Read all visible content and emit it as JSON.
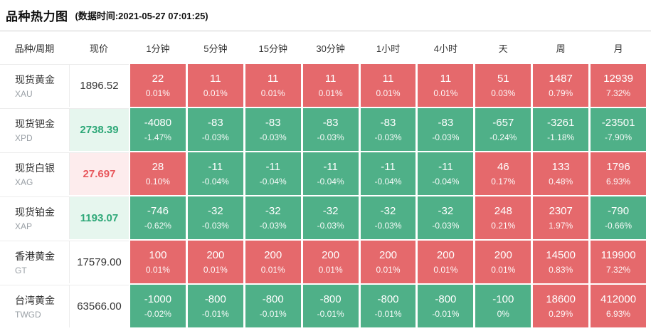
{
  "page": {
    "title": "品种热力图",
    "subtitle": "(数据时间:2021-05-27 07:01:25)"
  },
  "colors": {
    "up": "#E5696C",
    "down": "#4FB088",
    "price_up_bg": "#FDECED",
    "price_up_text": "#E8575C",
    "price_down_bg": "#E6F6EE",
    "price_down_text": "#2EA878"
  },
  "chart_data": {
    "type": "heatmap",
    "columns": [
      "品种/周期",
      "现价",
      "1分钟",
      "5分钟",
      "15分钟",
      "30分钟",
      "1小时",
      "4小时",
      "天",
      "周",
      "月"
    ],
    "rows": [
      {
        "name": "现货黄金",
        "code": "XAU",
        "price": "1896.52",
        "price_trend": "neutral",
        "cells": [
          {
            "value": "22",
            "pct": "0.01%",
            "trend": "up"
          },
          {
            "value": "11",
            "pct": "0.01%",
            "trend": "up"
          },
          {
            "value": "11",
            "pct": "0.01%",
            "trend": "up"
          },
          {
            "value": "11",
            "pct": "0.01%",
            "trend": "up"
          },
          {
            "value": "11",
            "pct": "0.01%",
            "trend": "up"
          },
          {
            "value": "11",
            "pct": "0.01%",
            "trend": "up"
          },
          {
            "value": "51",
            "pct": "0.03%",
            "trend": "up"
          },
          {
            "value": "1487",
            "pct": "0.79%",
            "trend": "up"
          },
          {
            "value": "12939",
            "pct": "7.32%",
            "trend": "up"
          }
        ]
      },
      {
        "name": "现货钯金",
        "code": "XPD",
        "price": "2738.39",
        "price_trend": "down",
        "cells": [
          {
            "value": "-4080",
            "pct": "-1.47%",
            "trend": "down"
          },
          {
            "value": "-83",
            "pct": "-0.03%",
            "trend": "down"
          },
          {
            "value": "-83",
            "pct": "-0.03%",
            "trend": "down"
          },
          {
            "value": "-83",
            "pct": "-0.03%",
            "trend": "down"
          },
          {
            "value": "-83",
            "pct": "-0.03%",
            "trend": "down"
          },
          {
            "value": "-83",
            "pct": "-0.03%",
            "trend": "down"
          },
          {
            "value": "-657",
            "pct": "-0.24%",
            "trend": "down"
          },
          {
            "value": "-3261",
            "pct": "-1.18%",
            "trend": "down"
          },
          {
            "value": "-23501",
            "pct": "-7.90%",
            "trend": "down"
          }
        ]
      },
      {
        "name": "现货白银",
        "code": "XAG",
        "price": "27.697",
        "price_trend": "up",
        "cells": [
          {
            "value": "28",
            "pct": "0.10%",
            "trend": "up"
          },
          {
            "value": "-11",
            "pct": "-0.04%",
            "trend": "down"
          },
          {
            "value": "-11",
            "pct": "-0.04%",
            "trend": "down"
          },
          {
            "value": "-11",
            "pct": "-0.04%",
            "trend": "down"
          },
          {
            "value": "-11",
            "pct": "-0.04%",
            "trend": "down"
          },
          {
            "value": "-11",
            "pct": "-0.04%",
            "trend": "down"
          },
          {
            "value": "46",
            "pct": "0.17%",
            "trend": "up"
          },
          {
            "value": "133",
            "pct": "0.48%",
            "trend": "up"
          },
          {
            "value": "1796",
            "pct": "6.93%",
            "trend": "up"
          }
        ]
      },
      {
        "name": "现货铂金",
        "code": "XAP",
        "price": "1193.07",
        "price_trend": "down",
        "cells": [
          {
            "value": "-746",
            "pct": "-0.62%",
            "trend": "down"
          },
          {
            "value": "-32",
            "pct": "-0.03%",
            "trend": "down"
          },
          {
            "value": "-32",
            "pct": "-0.03%",
            "trend": "down"
          },
          {
            "value": "-32",
            "pct": "-0.03%",
            "trend": "down"
          },
          {
            "value": "-32",
            "pct": "-0.03%",
            "trend": "down"
          },
          {
            "value": "-32",
            "pct": "-0.03%",
            "trend": "down"
          },
          {
            "value": "248",
            "pct": "0.21%",
            "trend": "up"
          },
          {
            "value": "2307",
            "pct": "1.97%",
            "trend": "up"
          },
          {
            "value": "-790",
            "pct": "-0.66%",
            "trend": "down"
          }
        ]
      },
      {
        "name": "香港黄金",
        "code": "GT",
        "price": "17579.00",
        "price_trend": "neutral",
        "cells": [
          {
            "value": "100",
            "pct": "0.01%",
            "trend": "up"
          },
          {
            "value": "200",
            "pct": "0.01%",
            "trend": "up"
          },
          {
            "value": "200",
            "pct": "0.01%",
            "trend": "up"
          },
          {
            "value": "200",
            "pct": "0.01%",
            "trend": "up"
          },
          {
            "value": "200",
            "pct": "0.01%",
            "trend": "up"
          },
          {
            "value": "200",
            "pct": "0.01%",
            "trend": "up"
          },
          {
            "value": "200",
            "pct": "0.01%",
            "trend": "up"
          },
          {
            "value": "14500",
            "pct": "0.83%",
            "trend": "up"
          },
          {
            "value": "119900",
            "pct": "7.32%",
            "trend": "up"
          }
        ]
      },
      {
        "name": "台湾黄金",
        "code": "TWGD",
        "price": "63566.00",
        "price_trend": "neutral",
        "cells": [
          {
            "value": "-1000",
            "pct": "-0.02%",
            "trend": "down"
          },
          {
            "value": "-800",
            "pct": "-0.01%",
            "trend": "down"
          },
          {
            "value": "-800",
            "pct": "-0.01%",
            "trend": "down"
          },
          {
            "value": "-800",
            "pct": "-0.01%",
            "trend": "down"
          },
          {
            "value": "-800",
            "pct": "-0.01%",
            "trend": "down"
          },
          {
            "value": "-800",
            "pct": "-0.01%",
            "trend": "down"
          },
          {
            "value": "-100",
            "pct": "0%",
            "trend": "down"
          },
          {
            "value": "18600",
            "pct": "0.29%",
            "trend": "up"
          },
          {
            "value": "412000",
            "pct": "6.93%",
            "trend": "up"
          }
        ]
      }
    ]
  }
}
